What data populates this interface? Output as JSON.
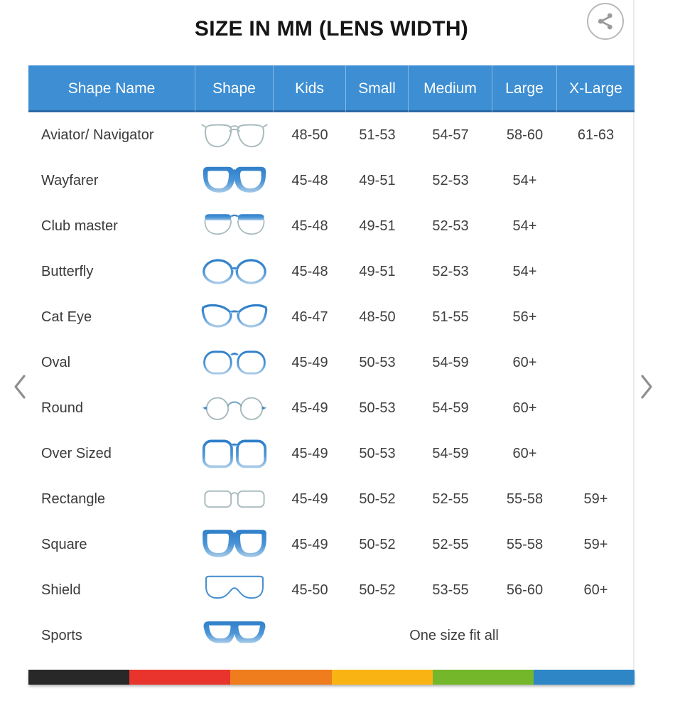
{
  "title": "SIZE IN MM (LENS WIDTH)",
  "share": {
    "icon": "share-icon"
  },
  "carousel": {
    "prev_icon": "chevron-left-icon",
    "next_icon": "chevron-right-icon"
  },
  "table": {
    "columns": [
      "Shape Name",
      "Shape",
      "Kids",
      "Small",
      "Medium",
      "Large",
      "X-Large"
    ],
    "rows": [
      {
        "name": "Aviator/ Navigator",
        "icon": "aviator-glasses-icon",
        "kids": "48-50",
        "small": "51-53",
        "medium": "54-57",
        "large": "58-60",
        "xlarge": "61-63"
      },
      {
        "name": "Wayfarer",
        "icon": "wayfarer-glasses-icon",
        "kids": "45-48",
        "small": "49-51",
        "medium": "52-53",
        "large": "54+",
        "xlarge": ""
      },
      {
        "name": "Club master",
        "icon": "clubmaster-glasses-icon",
        "kids": "45-48",
        "small": "49-51",
        "medium": "52-53",
        "large": "54+",
        "xlarge": ""
      },
      {
        "name": "Butterfly",
        "icon": "butterfly-glasses-icon",
        "kids": "45-48",
        "small": "49-51",
        "medium": "52-53",
        "large": "54+",
        "xlarge": ""
      },
      {
        "name": "Cat Eye",
        "icon": "cateye-glasses-icon",
        "kids": "46-47",
        "small": "48-50",
        "medium": "51-55",
        "large": "56+",
        "xlarge": ""
      },
      {
        "name": "Oval",
        "icon": "oval-glasses-icon",
        "kids": "45-49",
        "small": "50-53",
        "medium": "54-59",
        "large": "60+",
        "xlarge": ""
      },
      {
        "name": "Round",
        "icon": "round-glasses-icon",
        "kids": "45-49",
        "small": "50-53",
        "medium": "54-59",
        "large": "60+",
        "xlarge": ""
      },
      {
        "name": "Over Sized",
        "icon": "oversized-glasses-icon",
        "kids": "45-49",
        "small": "50-53",
        "medium": "54-59",
        "large": "60+",
        "xlarge": ""
      },
      {
        "name": "Rectangle",
        "icon": "rectangle-glasses-icon",
        "kids": "45-49",
        "small": "50-52",
        "medium": "52-55",
        "large": "55-58",
        "xlarge": "59+"
      },
      {
        "name": "Square",
        "icon": "square-glasses-icon",
        "kids": "45-49",
        "small": "50-52",
        "medium": "52-55",
        "large": "55-58",
        "xlarge": "59+"
      },
      {
        "name": "Shield",
        "icon": "shield-glasses-icon",
        "kids": "45-50",
        "small": "50-52",
        "medium": "53-55",
        "large": "56-60",
        "xlarge": "60+"
      },
      {
        "name": "Sports",
        "icon": "sports-glasses-icon",
        "span_text": "One size fit all"
      }
    ]
  },
  "footer_stripe_colors": [
    "#282828",
    "#e8342d",
    "#ef7d1d",
    "#f9b414",
    "#74b72a",
    "#2e86c7"
  ],
  "colors": {
    "header_bg": "#3d8ed2",
    "frame_blue": "#3b85c7",
    "frame_gray": "#a7babd"
  }
}
